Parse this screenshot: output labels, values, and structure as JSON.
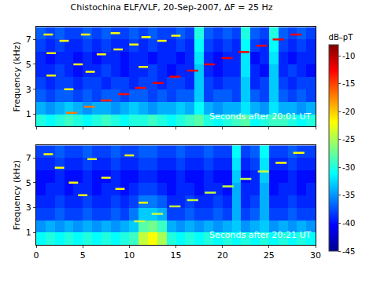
{
  "chart_data": {
    "type": "heatmap",
    "title": "Chistochina ELF/VLF, 20-Sep-2007, ΔF = 25 Hz",
    "y_label": "Frequency (kHz)",
    "xlim": [
      0,
      30
    ],
    "xticks": [
      0,
      5,
      10,
      15,
      20,
      25,
      30
    ],
    "colorbar": {
      "label": "dB–pT",
      "range": [
        -45,
        -8
      ],
      "ticks": [
        -10,
        -15,
        -20,
        -25,
        -30,
        -35,
        -40,
        -45
      ]
    },
    "panels": [
      {
        "annotation": "Seconds after 20:01 UT",
        "ylim": [
          0,
          8
        ],
        "yticks": [
          1,
          3,
          5,
          7
        ],
        "x": [
          0.5,
          1.5,
          2.5,
          3.5,
          4.5,
          5.5,
          6.5,
          7.5,
          8.5,
          9.5,
          10.5,
          11.5,
          12.5,
          13.5,
          14.5,
          15.5,
          16.5,
          17.5,
          18.5,
          19.5,
          20.5,
          21.5,
          22.5,
          23.5,
          24.5,
          25.5,
          26.5,
          27.5,
          28.5,
          29.5
        ],
        "y": [
          0.5,
          1.5,
          2.5,
          3.5,
          4.5,
          5.5,
          6.5,
          7.5
        ],
        "cells": [
          [
            -30,
            -31,
            -30,
            -29,
            -30,
            -31,
            -30,
            -29,
            -30,
            -31,
            -30,
            -30,
            -29,
            -30,
            -31,
            -30,
            -29,
            -28,
            -30,
            -31,
            -30,
            -29,
            -28,
            -31,
            -30,
            -29,
            -29,
            -30,
            -31,
            -30
          ],
          [
            -34,
            -35,
            -34,
            -33,
            -34,
            -35,
            -34,
            -34,
            -35,
            -34,
            -33,
            -34,
            -35,
            -34,
            -34,
            -33,
            -34,
            -31,
            -34,
            -35,
            -34,
            -34,
            -32,
            -34,
            -35,
            -32,
            -34,
            -34,
            -35,
            -34
          ],
          [
            -37,
            -38,
            -37,
            -37,
            -38,
            -37,
            -38,
            -37,
            -37,
            -38,
            -37,
            -37,
            -38,
            -37,
            -38,
            -37,
            -37,
            -33,
            -38,
            -37,
            -37,
            -38,
            -33,
            -37,
            -38,
            -33,
            -37,
            -38,
            -37,
            -38
          ],
          [
            -38,
            -39,
            -38,
            -38,
            -39,
            -38,
            -38,
            -39,
            -38,
            -38,
            -39,
            -38,
            -38,
            -39,
            -38,
            -38,
            -39,
            -33,
            -38,
            -39,
            -38,
            -38,
            -33,
            -39,
            -38,
            -33,
            -38,
            -39,
            -38,
            -38
          ],
          [
            -39,
            -39,
            -38,
            -39,
            -40,
            -39,
            -39,
            -38,
            -39,
            -40,
            -39,
            -39,
            -38,
            -39,
            -40,
            -39,
            -39,
            -33,
            -39,
            -40,
            -39,
            -39,
            -32,
            -39,
            -40,
            -33,
            -39,
            -38,
            -39,
            -40
          ],
          [
            -39,
            -40,
            -39,
            -39,
            -40,
            -39,
            -40,
            -39,
            -39,
            -40,
            -39,
            -39,
            -40,
            -39,
            -39,
            -40,
            -39,
            -32,
            -39,
            -40,
            -39,
            -39,
            -32,
            -40,
            -39,
            -32,
            -39,
            -40,
            -39,
            -39
          ],
          [
            -38,
            -39,
            -38,
            -39,
            -39,
            -38,
            -39,
            -38,
            -39,
            -39,
            -38,
            -39,
            -38,
            -39,
            -39,
            -38,
            -39,
            -31,
            -38,
            -39,
            -38,
            -39,
            -31,
            -38,
            -39,
            -31,
            -38,
            -39,
            -38,
            -39
          ],
          [
            -37,
            -38,
            -37,
            -38,
            -38,
            -37,
            -38,
            -37,
            -38,
            -38,
            -37,
            -38,
            -37,
            -38,
            -38,
            -37,
            -38,
            -30,
            -37,
            -38,
            -37,
            -38,
            -30,
            -37,
            -38,
            -30,
            -37,
            -38,
            -37,
            -38
          ]
        ],
        "tones": [
          {
            "t0": 0.8,
            "t1": 1.8,
            "f": 7.4,
            "level": -22
          },
          {
            "t0": 1.1,
            "t1": 2.1,
            "f": 5.9,
            "level": -22
          },
          {
            "t0": 1.1,
            "t1": 2.1,
            "f": 4.1,
            "level": -22
          },
          {
            "t0": 2.5,
            "t1": 3.5,
            "f": 6.9,
            "level": -22
          },
          {
            "t0": 3.0,
            "t1": 4.0,
            "f": 3.0,
            "level": -22
          },
          {
            "t0": 4.0,
            "t1": 5.0,
            "f": 5.0,
            "level": -22
          },
          {
            "t0": 4.8,
            "t1": 5.8,
            "f": 7.4,
            "level": -22
          },
          {
            "t0": 5.3,
            "t1": 6.3,
            "f": 4.4,
            "level": -22
          },
          {
            "t0": 6.5,
            "t1": 7.5,
            "f": 5.8,
            "level": -22
          },
          {
            "t0": 8.0,
            "t1": 9.0,
            "f": 7.5,
            "level": -22
          },
          {
            "t0": 8.3,
            "t1": 9.3,
            "f": 6.2,
            "level": -22
          },
          {
            "t0": 10.0,
            "t1": 11.0,
            "f": 6.6,
            "level": -22
          },
          {
            "t0": 11.0,
            "t1": 12.0,
            "f": 4.8,
            "level": -22
          },
          {
            "t0": 11.3,
            "t1": 12.3,
            "f": 7.2,
            "level": -22
          },
          {
            "t0": 13.0,
            "t1": 14.0,
            "f": 6.9,
            "level": -22
          },
          {
            "t0": 14.5,
            "t1": 15.5,
            "f": 7.3,
            "level": -22
          },
          {
            "t0": 3.2,
            "t1": 4.4,
            "f": 1.1,
            "level": -17
          },
          {
            "t0": 5.1,
            "t1": 6.3,
            "f": 1.6,
            "level": -17
          },
          {
            "t0": 6.9,
            "t1": 8.1,
            "f": 2.1,
            "level": -14
          },
          {
            "t0": 8.8,
            "t1": 10.0,
            "f": 2.6,
            "level": -13
          },
          {
            "t0": 10.6,
            "t1": 11.8,
            "f": 3.1,
            "level": -13
          },
          {
            "t0": 12.5,
            "t1": 13.7,
            "f": 3.5,
            "level": -12
          },
          {
            "t0": 14.3,
            "t1": 15.5,
            "f": 4.0,
            "level": -12
          },
          {
            "t0": 16.2,
            "t1": 17.4,
            "f": 4.5,
            "level": -12
          },
          {
            "t0": 18.0,
            "t1": 19.2,
            "f": 5.0,
            "level": -12
          },
          {
            "t0": 19.9,
            "t1": 21.1,
            "f": 5.5,
            "level": -12
          },
          {
            "t0": 21.7,
            "t1": 22.9,
            "f": 6.0,
            "level": -12
          },
          {
            "t0": 23.6,
            "t1": 24.8,
            "f": 6.5,
            "level": -12
          },
          {
            "t0": 25.4,
            "t1": 26.6,
            "f": 7.0,
            "level": -12
          },
          {
            "t0": 27.3,
            "t1": 28.5,
            "f": 7.4,
            "level": -12
          }
        ]
      },
      {
        "annotation": "Seconds after 20:21 UT",
        "ylim": [
          0,
          8
        ],
        "yticks": [
          1,
          3,
          5,
          7
        ],
        "x": [
          0.5,
          1.5,
          2.5,
          3.5,
          4.5,
          5.5,
          6.5,
          7.5,
          8.5,
          9.5,
          10.5,
          11.5,
          12.5,
          13.5,
          14.5,
          15.5,
          16.5,
          17.5,
          18.5,
          19.5,
          20.5,
          21.5,
          22.5,
          23.5,
          24.5,
          25.5,
          26.5,
          27.5,
          28.5,
          29.5
        ],
        "y": [
          0.5,
          1.5,
          2.5,
          3.5,
          4.5,
          5.5,
          6.5,
          7.5
        ],
        "cells": [
          [
            -31,
            -30,
            -31,
            -30,
            -31,
            -30,
            -31,
            -30,
            -31,
            -30,
            -29,
            -24,
            -22,
            -25,
            -30,
            -31,
            -30,
            -31,
            -30,
            -31,
            -30,
            -31,
            -30,
            -31,
            -30,
            -31,
            -30,
            -31,
            -30,
            -31
          ],
          [
            -35,
            -34,
            -35,
            -34,
            -35,
            -34,
            -35,
            -34,
            -35,
            -34,
            -33,
            -28,
            -27,
            -29,
            -34,
            -35,
            -34,
            -35,
            -34,
            -35,
            -34,
            -33,
            -35,
            -34,
            -33,
            -35,
            -34,
            -35,
            -34,
            -35
          ],
          [
            -38,
            -38,
            -37,
            -38,
            -38,
            -37,
            -38,
            -38,
            -37,
            -38,
            -36,
            -33,
            -33,
            -34,
            -38,
            -38,
            -37,
            -38,
            -38,
            -37,
            -38,
            -34,
            -38,
            -37,
            -34,
            -38,
            -38,
            -37,
            -38,
            -38
          ],
          [
            -39,
            -39,
            -38,
            -39,
            -39,
            -38,
            -39,
            -39,
            -38,
            -39,
            -38,
            -36,
            -36,
            -37,
            -39,
            -39,
            -38,
            -39,
            -39,
            -38,
            -39,
            -34,
            -39,
            -38,
            -34,
            -39,
            -39,
            -38,
            -39,
            -39
          ],
          [
            -40,
            -39,
            -39,
            -40,
            -39,
            -39,
            -40,
            -39,
            -39,
            -40,
            -39,
            -38,
            -38,
            -39,
            -40,
            -39,
            -39,
            -40,
            -39,
            -39,
            -40,
            -34,
            -39,
            -39,
            -34,
            -40,
            -39,
            -39,
            -40,
            -39
          ],
          [
            -40,
            -40,
            -39,
            -40,
            -40,
            -39,
            -40,
            -40,
            -39,
            -40,
            -40,
            -39,
            -39,
            -40,
            -40,
            -39,
            -40,
            -40,
            -39,
            -40,
            -40,
            -33,
            -40,
            -39,
            -33,
            -40,
            -40,
            -39,
            -40,
            -40
          ],
          [
            -39,
            -39,
            -38,
            -39,
            -39,
            -38,
            -39,
            -39,
            -38,
            -39,
            -39,
            -38,
            -38,
            -39,
            -39,
            -38,
            -39,
            -39,
            -38,
            -39,
            -39,
            -32,
            -39,
            -38,
            -32,
            -39,
            -39,
            -38,
            -39,
            -39
          ],
          [
            -38,
            -38,
            -37,
            -38,
            -38,
            -37,
            -38,
            -38,
            -37,
            -38,
            -38,
            -37,
            -37,
            -38,
            -38,
            -37,
            -38,
            -38,
            -37,
            -38,
            -38,
            -31,
            -38,
            -37,
            -31,
            -38,
            -38,
            -37,
            -38,
            -38
          ]
        ],
        "tones": [
          {
            "t0": 0.8,
            "t1": 1.8,
            "f": 7.3,
            "level": -22
          },
          {
            "t0": 2.0,
            "t1": 3.0,
            "f": 6.2,
            "level": -22
          },
          {
            "t0": 3.5,
            "t1": 4.5,
            "f": 5.0,
            "level": -22
          },
          {
            "t0": 4.5,
            "t1": 5.5,
            "f": 4.0,
            "level": -22
          },
          {
            "t0": 5.5,
            "t1": 6.5,
            "f": 6.9,
            "level": -22
          },
          {
            "t0": 7.0,
            "t1": 8.0,
            "f": 5.4,
            "level": -22
          },
          {
            "t0": 8.5,
            "t1": 9.5,
            "f": 4.5,
            "level": -22
          },
          {
            "t0": 9.5,
            "t1": 10.5,
            "f": 7.2,
            "level": -22
          },
          {
            "t0": 11.0,
            "t1": 12.0,
            "f": 3.4,
            "level": -22
          },
          {
            "t0": 10.5,
            "t1": 11.7,
            "f": 1.9,
            "level": -24
          },
          {
            "t0": 12.4,
            "t1": 13.6,
            "f": 2.5,
            "level": -24
          },
          {
            "t0": 14.3,
            "t1": 15.5,
            "f": 3.1,
            "level": -24
          },
          {
            "t0": 16.2,
            "t1": 17.4,
            "f": 3.6,
            "level": -24
          },
          {
            "t0": 18.1,
            "t1": 19.3,
            "f": 4.2,
            "level": -24
          },
          {
            "t0": 20.0,
            "t1": 21.2,
            "f": 4.7,
            "level": -24
          },
          {
            "t0": 21.9,
            "t1": 23.1,
            "f": 5.3,
            "level": -24
          },
          {
            "t0": 23.8,
            "t1": 25.0,
            "f": 5.9,
            "level": -24
          },
          {
            "t0": 25.7,
            "t1": 26.9,
            "f": 6.6,
            "level": -22
          },
          {
            "t0": 27.6,
            "t1": 28.8,
            "f": 7.4,
            "level": -22
          }
        ]
      }
    ]
  }
}
